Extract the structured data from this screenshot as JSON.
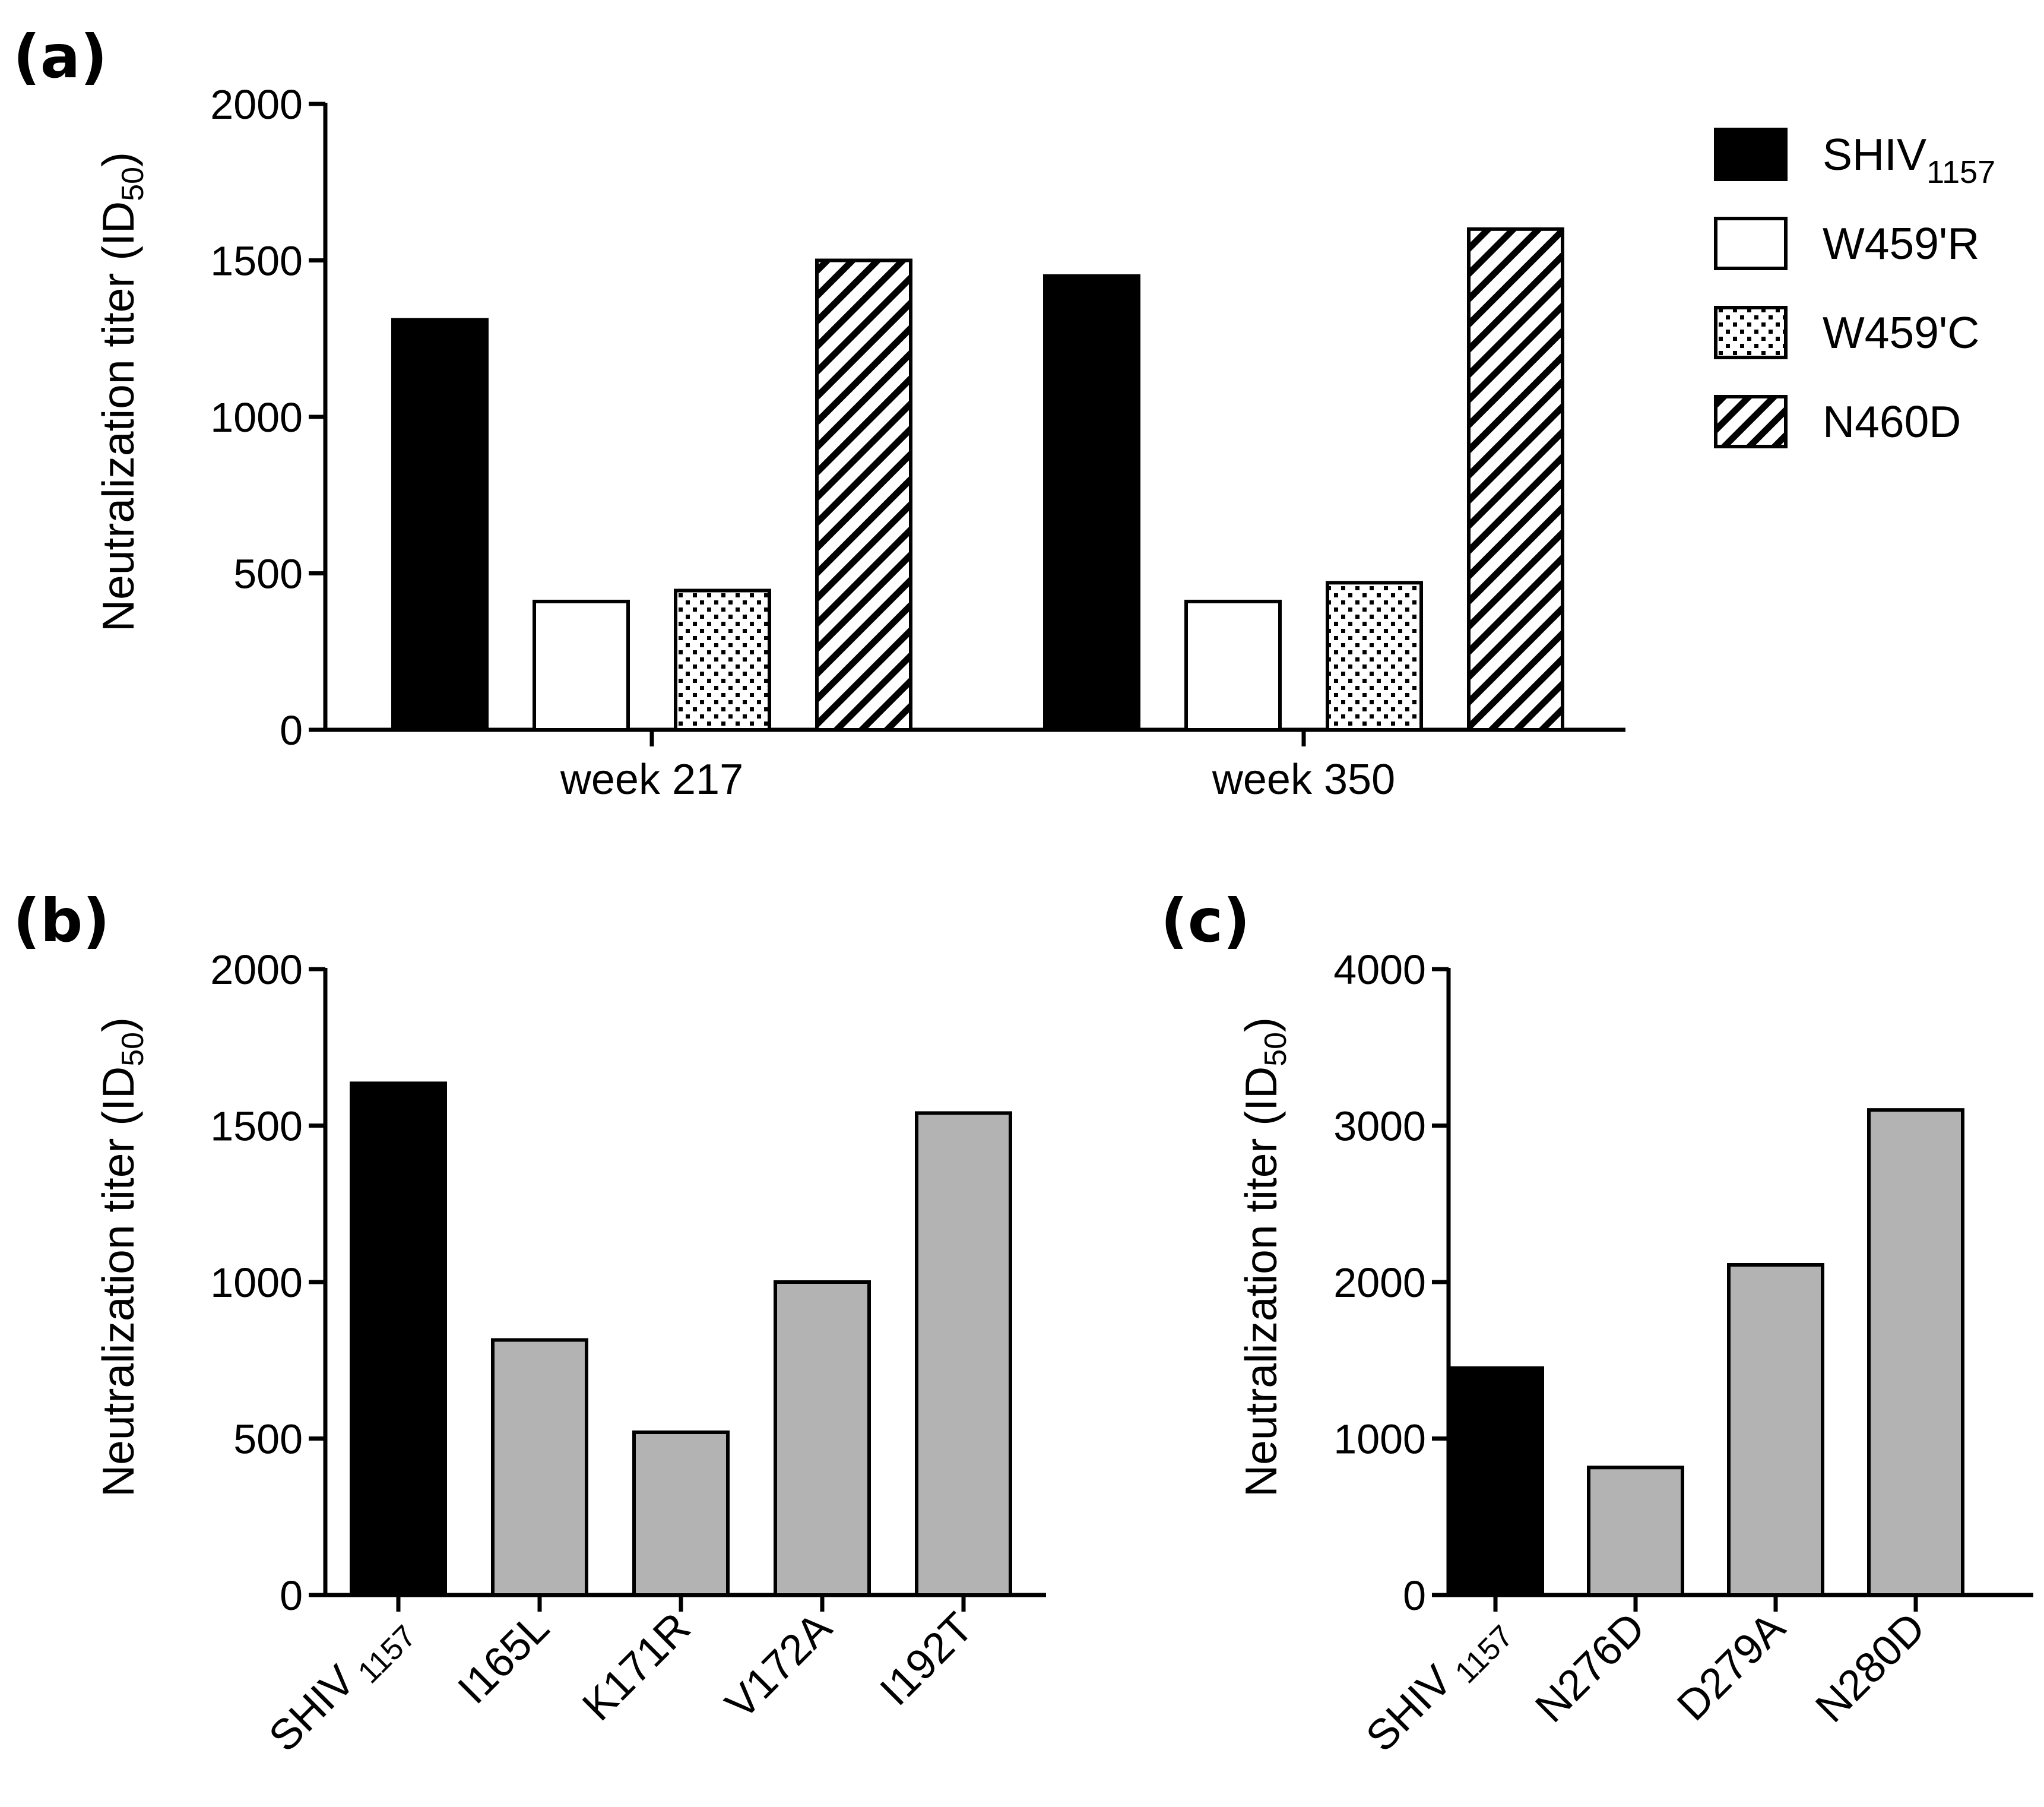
{
  "colors": {
    "black": "#000000",
    "white": "#ffffff",
    "gray": "#b3b3b3"
  },
  "chart_data": [
    {
      "id": "a",
      "type": "bar",
      "panel_label": "(a)",
      "ylabel": {
        "main": "Neutralization titer (ID",
        "sub": "50",
        "end": ")"
      },
      "ylim": [
        0,
        2000
      ],
      "yticks": [
        0,
        500,
        1000,
        1500,
        2000
      ],
      "categories": [
        "week 217",
        "week 350"
      ],
      "series": [
        {
          "name": "SHIV",
          "sub": "1157",
          "fill": "black",
          "values": [
            1310,
            1450
          ]
        },
        {
          "name": "W459'R",
          "sub": "",
          "fill": "white",
          "values": [
            410,
            410
          ]
        },
        {
          "name": "W459'C",
          "sub": "",
          "fill": "dots",
          "values": [
            445,
            470
          ]
        },
        {
          "name": "N460D",
          "sub": "",
          "fill": "hatch",
          "values": [
            1500,
            1600
          ]
        }
      ],
      "legend_position": "top-right"
    },
    {
      "id": "b",
      "type": "bar",
      "panel_label": "(b)",
      "ylabel": {
        "main": "Neutralization titer (ID",
        "sub": "50",
        "end": ")"
      },
      "ylim": [
        0,
        2000
      ],
      "yticks": [
        0,
        500,
        1000,
        1500,
        2000
      ],
      "bars": [
        {
          "label": "SHIV",
          "sub": "1157",
          "value": 1635,
          "fill": "black"
        },
        {
          "label": "I165L",
          "sub": "",
          "value": 815,
          "fill": "gray"
        },
        {
          "label": "K171R",
          "sub": "",
          "value": 520,
          "fill": "gray"
        },
        {
          "label": "V172A",
          "sub": "",
          "value": 1000,
          "fill": "gray"
        },
        {
          "label": "I192T",
          "sub": "",
          "value": 1540,
          "fill": "gray"
        }
      ]
    },
    {
      "id": "c",
      "type": "bar",
      "panel_label": "(c)",
      "ylabel": {
        "main": "Neutralization titer (ID",
        "sub": "50",
        "end": ")"
      },
      "ylim": [
        0,
        4000
      ],
      "yticks": [
        0,
        1000,
        2000,
        3000,
        4000
      ],
      "bars": [
        {
          "label": "SHIV",
          "sub": "1157",
          "value": 1450,
          "fill": "black"
        },
        {
          "label": "N276D",
          "sub": "",
          "value": 815,
          "fill": "gray"
        },
        {
          "label": "D279A",
          "sub": "",
          "value": 2110,
          "fill": "gray"
        },
        {
          "label": "N280D",
          "sub": "",
          "value": 3100,
          "fill": "gray"
        }
      ]
    }
  ]
}
